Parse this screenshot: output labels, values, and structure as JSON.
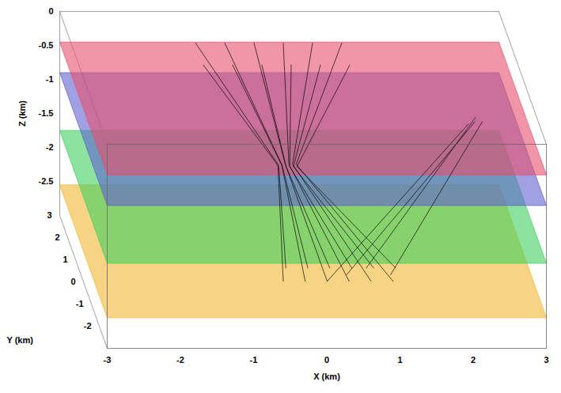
{
  "chart_data": {
    "type": "3d_ray",
    "xlabel": "X (km)",
    "ylabel": "Y (km)",
    "zlabel": "Z (km)",
    "xlim": [
      -3,
      3
    ],
    "ylim": [
      -3,
      3
    ],
    "zlim": [
      -3,
      0
    ],
    "xticks": [
      -3,
      -2,
      -1,
      0,
      1,
      2,
      3
    ],
    "yticks": [
      -2,
      -1,
      0,
      1,
      2,
      3
    ],
    "zticks": [
      0,
      -0.5,
      -1,
      -1.5,
      -2,
      -2.5
    ],
    "surfaces": [
      {
        "z": -2.55,
        "color": "#f0b830"
      },
      {
        "z": -1.75,
        "color": "#40d060"
      },
      {
        "z": -0.9,
        "color": "#6060d0"
      },
      {
        "z": -0.45,
        "color": "#e8506a"
      }
    ],
    "ray_color": "#000000",
    "rays": [
      [
        [
          -1.2,
          2.5,
          -0.3
        ],
        [
          -0.3,
          0.4,
          -1.4
        ],
        [
          -0.4,
          -1.2,
          -2.6
        ]
      ],
      [
        [
          -0.8,
          2.5,
          -0.3
        ],
        [
          -0.25,
          0.4,
          -1.4
        ],
        [
          -0.1,
          -1.2,
          -2.6
        ]
      ],
      [
        [
          -0.4,
          2.5,
          -0.3
        ],
        [
          -0.2,
          0.4,
          -1.4
        ],
        [
          0.2,
          -1.2,
          -2.6
        ]
      ],
      [
        [
          0,
          2.5,
          -0.3
        ],
        [
          -0.15,
          0.4,
          -1.4
        ],
        [
          0.5,
          -1.2,
          -2.6
        ]
      ],
      [
        [
          0.4,
          2.5,
          -0.3
        ],
        [
          -0.1,
          0.4,
          -1.4
        ],
        [
          0.8,
          -1.2,
          -2.6
        ]
      ],
      [
        [
          0.8,
          2.5,
          -0.3
        ],
        [
          -0.05,
          0.4,
          -1.4
        ],
        [
          1.1,
          -1.2,
          -2.6
        ]
      ],
      [
        [
          -1.2,
          1.5,
          -0.3
        ],
        [
          -0.3,
          0.3,
          -1.4
        ],
        [
          -0.3,
          -0.6,
          -2.6
        ]
      ],
      [
        [
          -0.8,
          1.5,
          -0.3
        ],
        [
          -0.25,
          0.3,
          -1.4
        ],
        [
          0,
          -0.6,
          -2.6
        ]
      ],
      [
        [
          -0.4,
          1.5,
          -0.3
        ],
        [
          -0.2,
          0.3,
          -1.4
        ],
        [
          0.3,
          -0.6,
          -2.6
        ]
      ],
      [
        [
          0,
          1.5,
          -0.3
        ],
        [
          -0.15,
          0.3,
          -1.4
        ],
        [
          0.6,
          -0.6,
          -2.6
        ]
      ],
      [
        [
          0.4,
          1.5,
          -0.3
        ],
        [
          -0.1,
          0.3,
          -1.4
        ],
        [
          0.9,
          -0.6,
          -2.6
        ]
      ],
      [
        [
          0.8,
          1.5,
          -0.3
        ],
        [
          -0.05,
          0.3,
          -1.4
        ],
        [
          1.2,
          -0.6,
          -2.6
        ]
      ],
      [
        [
          0.2,
          -1.2,
          -2.6
        ],
        [
          2.4,
          1.3,
          -1.1
        ]
      ],
      [
        [
          0.5,
          -0.9,
          -2.6
        ],
        [
          2.5,
          1.4,
          -1.1
        ]
      ],
      [
        [
          0.8,
          -0.6,
          -2.6
        ],
        [
          2.5,
          1.3,
          -1.0
        ]
      ],
      [
        [
          1.1,
          -0.9,
          -2.6
        ],
        [
          2.6,
          1.4,
          -1.1
        ]
      ]
    ]
  }
}
